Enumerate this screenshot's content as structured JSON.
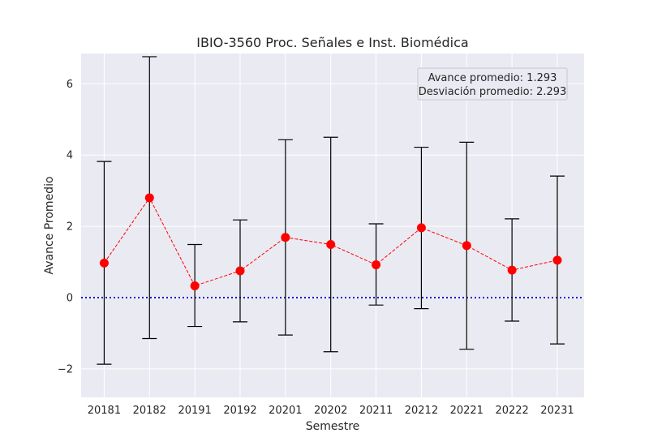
{
  "chart_data": {
    "type": "line",
    "title": "IBIO-3560 Proc. Señales e Inst. Biomédica",
    "xlabel": "Semestre",
    "ylabel": "Avance Promedio",
    "categories": [
      "20181",
      "20182",
      "20191",
      "20192",
      "20201",
      "20202",
      "20211",
      "20212",
      "20221",
      "20222",
      "20231"
    ],
    "series": [
      {
        "values": [
          0.97,
          2.8,
          0.33,
          0.75,
          1.69,
          1.49,
          0.92,
          1.96,
          1.46,
          0.77,
          1.05
        ],
        "error_low": [
          -1.87,
          -1.15,
          -0.81,
          -0.68,
          -1.05,
          -1.52,
          -0.21,
          -0.31,
          -1.45,
          -0.66,
          -1.3
        ],
        "error_high": [
          3.82,
          6.76,
          1.49,
          2.18,
          4.43,
          4.5,
          2.07,
          4.22,
          4.36,
          2.21,
          3.41
        ],
        "color": "#ff0000",
        "line_style": "dashed",
        "marker": "circle"
      }
    ],
    "reference_line": {
      "y": 0,
      "color": "#0000cc",
      "style": "dotted"
    },
    "yticks": [
      -2,
      0,
      2,
      4,
      6
    ],
    "ylim": [
      -2.8,
      6.85
    ],
    "grid": true,
    "annotation_box": {
      "position": "top-right",
      "lines": [
        "Avance promedio: 1.293",
        "Desviación promedio: 2.293"
      ]
    },
    "colors": {
      "background": "#eaeaf2",
      "grid": "#ffffff",
      "errorbar": "#000000"
    }
  }
}
